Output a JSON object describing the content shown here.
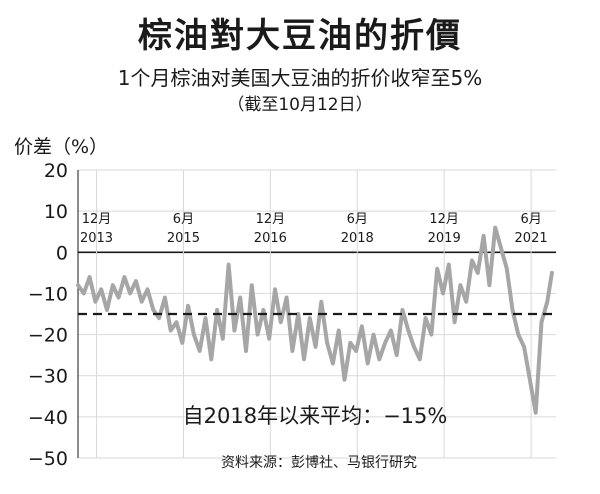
{
  "chart_data": {
    "type": "line",
    "title": "棕油對大豆油的折價",
    "subtitle": "1个月棕油对美国大豆油的折价收窄至5%",
    "subtitle2": "（截至10月12日）",
    "ylabel": "价差（%）",
    "ylim": [
      -50,
      20
    ],
    "yticks": [
      20,
      10,
      0,
      -10,
      -20,
      -30,
      -40,
      -50
    ],
    "xlim": [
      2013.6,
      2021.85
    ],
    "x_tick_labels": [
      {
        "x": 2013.92,
        "month": "12月",
        "year": "2013"
      },
      {
        "x": 2015.42,
        "month": "6月",
        "year": "2015"
      },
      {
        "x": 2016.92,
        "month": "12月",
        "year": "2016"
      },
      {
        "x": 2018.42,
        "month": "6月",
        "year": "2018"
      },
      {
        "x": 2019.92,
        "month": "12月",
        "year": "2019"
      },
      {
        "x": 2021.42,
        "month": "6月",
        "year": "2021"
      }
    ],
    "average": {
      "value": -15,
      "label": "自2018年以来平均：−15%"
    },
    "source": "资料来源：彭博社、马银行研究",
    "series": [
      {
        "line_color": "#a6a6a6",
        "x": [
          2013.6,
          2013.7,
          2013.8,
          2013.9,
          2014.0,
          2014.1,
          2014.2,
          2014.3,
          2014.4,
          2014.5,
          2014.6,
          2014.7,
          2014.8,
          2014.9,
          2015.0,
          2015.1,
          2015.2,
          2015.3,
          2015.4,
          2015.5,
          2015.6,
          2015.7,
          2015.8,
          2015.9,
          2016.0,
          2016.1,
          2016.2,
          2016.3,
          2016.4,
          2016.5,
          2016.6,
          2016.7,
          2016.8,
          2016.9,
          2017.0,
          2017.1,
          2017.2,
          2017.3,
          2017.4,
          2017.5,
          2017.6,
          2017.7,
          2017.8,
          2017.9,
          2018.0,
          2018.1,
          2018.2,
          2018.3,
          2018.4,
          2018.5,
          2018.6,
          2018.7,
          2018.8,
          2018.9,
          2019.0,
          2019.1,
          2019.2,
          2019.3,
          2019.4,
          2019.5,
          2019.6,
          2019.7,
          2019.8,
          2019.9,
          2020.0,
          2020.1,
          2020.2,
          2020.3,
          2020.4,
          2020.5,
          2020.6,
          2020.7,
          2020.8,
          2020.9,
          2021.0,
          2021.1,
          2021.2,
          2021.3,
          2021.4,
          2021.5,
          2021.6,
          2021.7,
          2021.78
        ],
        "y": [
          -8,
          -10,
          -6,
          -12,
          -9,
          -14,
          -8,
          -11,
          -6,
          -10,
          -7,
          -12,
          -9,
          -14,
          -16,
          -11,
          -19,
          -17,
          -22,
          -13,
          -20,
          -24,
          -16,
          -26,
          -14,
          -21,
          -3,
          -19,
          -11,
          -24,
          -8,
          -20,
          -14,
          -21,
          -9,
          -17,
          -11,
          -24,
          -15,
          -26,
          -16,
          -23,
          -12,
          -22,
          -27,
          -19,
          -31,
          -22,
          -24,
          -18,
          -27,
          -20,
          -26,
          -22,
          -19,
          -25,
          -14,
          -19,
          -23,
          -26,
          -16,
          -20,
          -4,
          -10,
          -3,
          -17,
          -8,
          -12,
          -2,
          -5,
          4,
          -8,
          6,
          1,
          -4,
          -14,
          -20,
          -23,
          -31,
          -39,
          -17,
          -12,
          -5
        ]
      }
    ]
  }
}
